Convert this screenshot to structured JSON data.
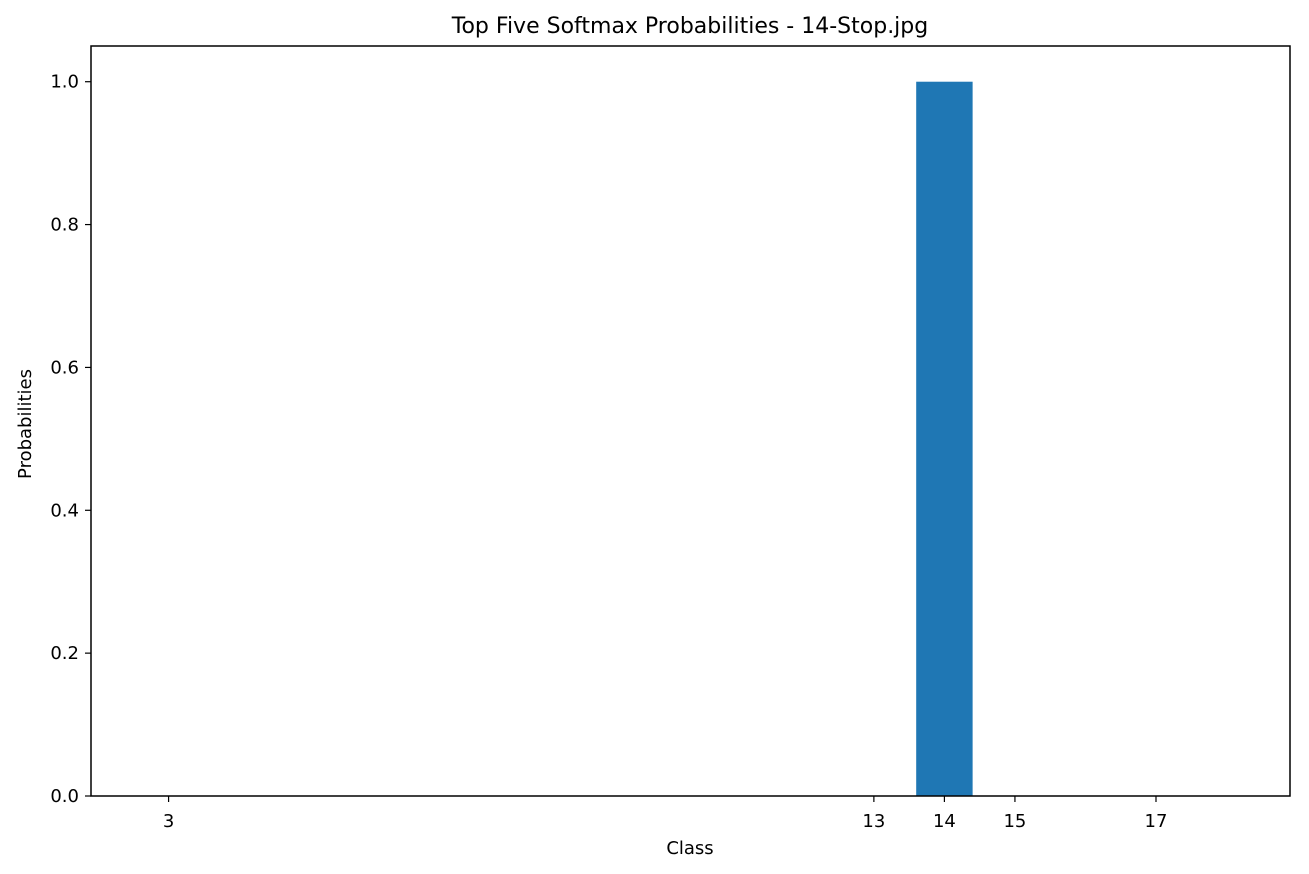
{
  "chart_data": {
    "type": "bar",
    "title": "Top Five Softmax Probabilities - 14-Stop.jpg",
    "xlabel": "Class",
    "ylabel": "Probabilities",
    "x": [
      3,
      13,
      14,
      15,
      17
    ],
    "values": [
      0.0,
      0.0,
      1.0,
      0.0,
      0.0
    ],
    "xlim": [
      1.9,
      18.9
    ],
    "ylim": [
      0,
      1.05
    ],
    "yticks": [
      "0.0",
      "0.2",
      "0.4",
      "0.6",
      "0.8",
      "1.0"
    ],
    "ytick_values": [
      0,
      0.2,
      0.4,
      0.6,
      0.8,
      1.0
    ],
    "xticks": [
      "3",
      "13",
      "14",
      "15",
      "17"
    ],
    "bar_width": 0.8,
    "grid": false,
    "colors": {
      "bar": "#1f77b4",
      "axis": "#000000"
    }
  }
}
